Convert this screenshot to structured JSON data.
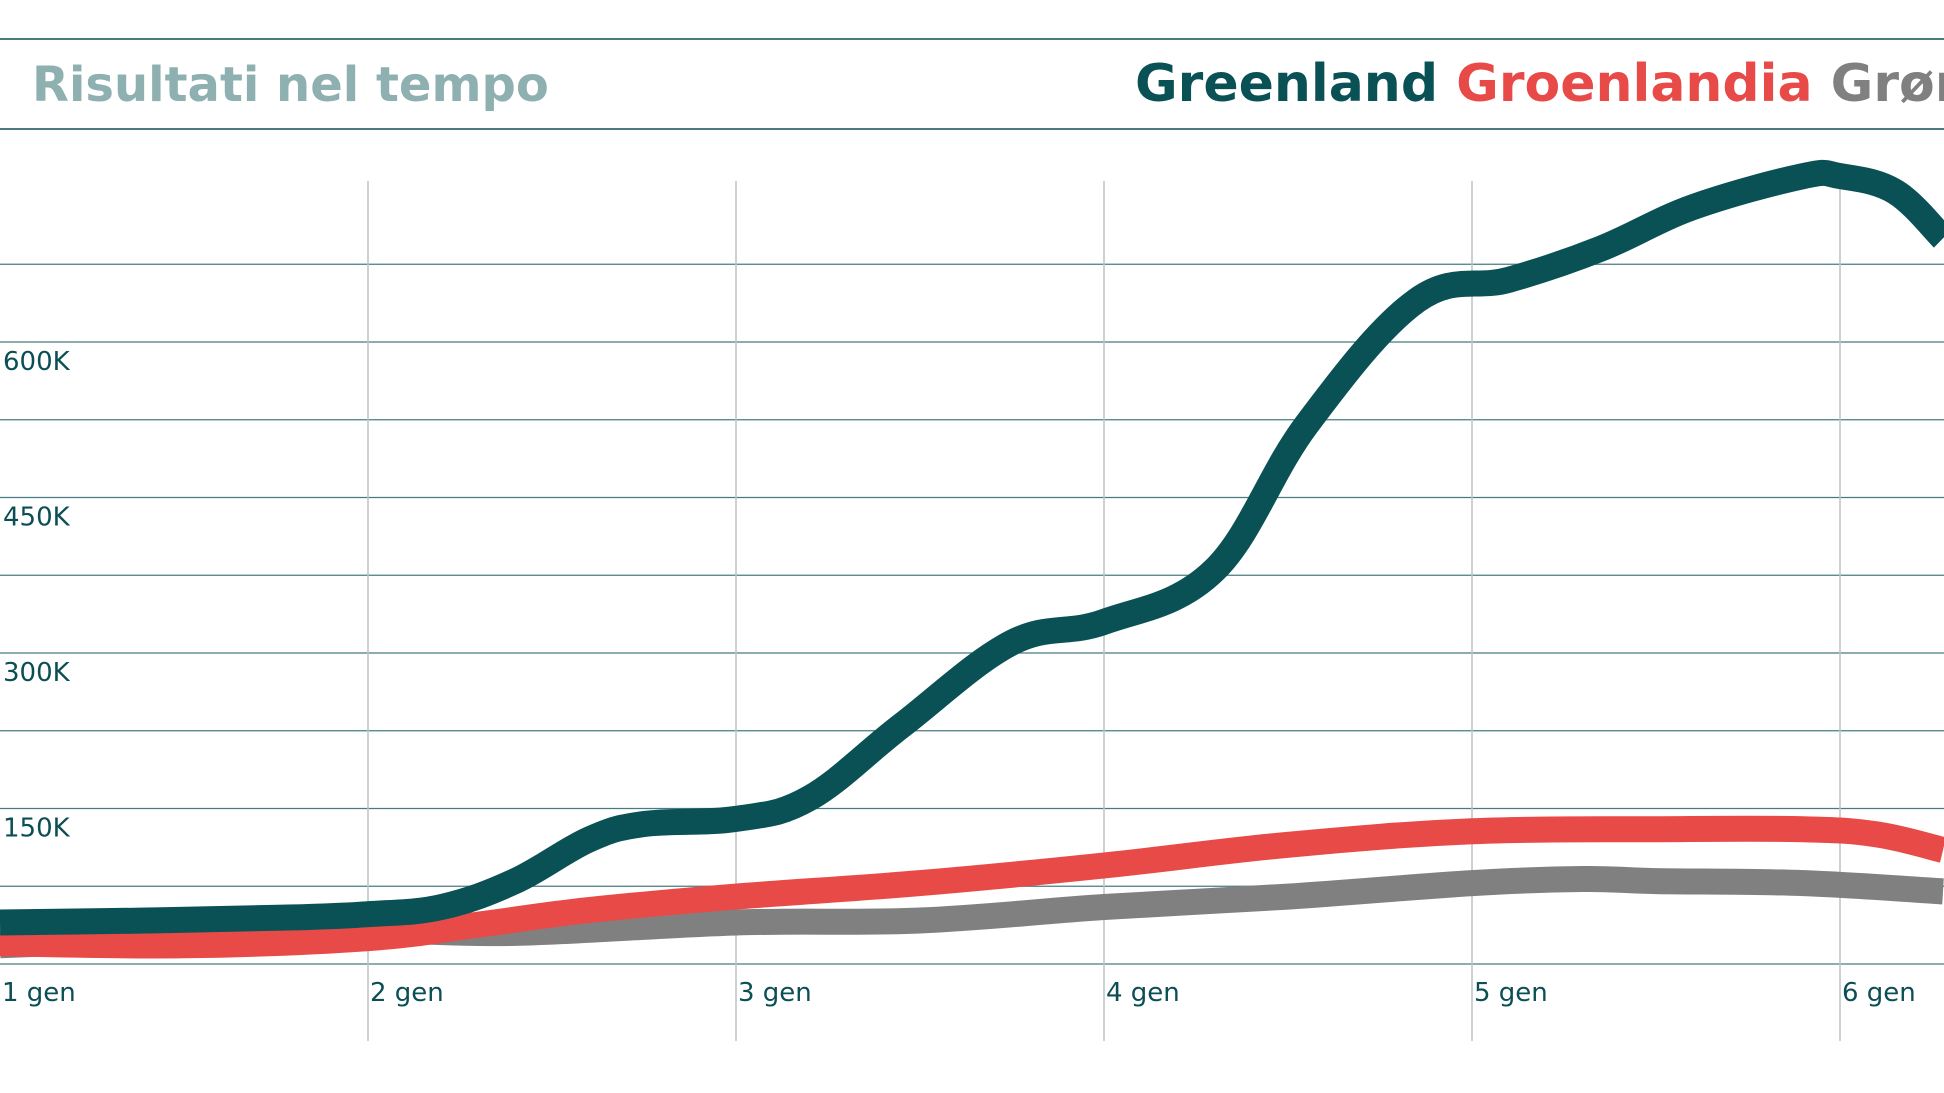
{
  "chart_data": {
    "type": "line",
    "title": "Risultati nel tempo",
    "categories": [
      "1 gen",
      "2 gen",
      "3 gen",
      "4 gen",
      "5 gen",
      "6 gen"
    ],
    "x_range": [
      0,
      5.28
    ],
    "ylim": [
      -12000,
      750000
    ],
    "yticks": [
      150000,
      300000,
      450000,
      600000
    ],
    "ytick_labels": [
      "150K",
      "300K",
      "450K",
      "600K"
    ],
    "grid": true,
    "legend_position": "top-right",
    "colors": {
      "title": "#8fb0b0",
      "axis_text": "#0b4f55",
      "gridline": "#0b4f55",
      "vgridline": "#b9c4c5",
      "background": "#ffffff"
    },
    "series": [
      {
        "name": "Greenland",
        "color": "#0a5155",
        "points": [
          [
            0.0,
            40000
          ],
          [
            0.4,
            42000
          ],
          [
            0.8,
            45000
          ],
          [
            1.0,
            48000
          ],
          [
            1.2,
            55000
          ],
          [
            1.4,
            80000
          ],
          [
            1.6,
            120000
          ],
          [
            1.75,
            135000
          ],
          [
            2.0,
            140000
          ],
          [
            2.2,
            160000
          ],
          [
            2.45,
            230000
          ],
          [
            2.75,
            310000
          ],
          [
            3.0,
            330000
          ],
          [
            3.3,
            380000
          ],
          [
            3.55,
            520000
          ],
          [
            3.85,
            640000
          ],
          [
            4.1,
            660000
          ],
          [
            4.35,
            690000
          ],
          [
            4.6,
            730000
          ],
          [
            4.9,
            760000
          ],
          [
            5.0,
            760000
          ],
          [
            5.15,
            745000
          ],
          [
            5.28,
            700000
          ]
        ]
      },
      {
        "name": "Groenlandia",
        "color": "#e84a47",
        "points": [
          [
            0.0,
            20000
          ],
          [
            0.5,
            18000
          ],
          [
            1.0,
            25000
          ],
          [
            1.3,
            38000
          ],
          [
            1.6,
            52000
          ],
          [
            2.0,
            65000
          ],
          [
            2.5,
            78000
          ],
          [
            3.0,
            95000
          ],
          [
            3.5,
            115000
          ],
          [
            4.0,
            128000
          ],
          [
            4.5,
            130000
          ],
          [
            4.9,
            130000
          ],
          [
            5.1,
            125000
          ],
          [
            5.28,
            110000
          ]
        ]
      },
      {
        "name": "Grønland",
        "color": "#808080",
        "points": [
          [
            0.0,
            18000
          ],
          [
            0.5,
            25000
          ],
          [
            1.0,
            32000
          ],
          [
            1.4,
            30000
          ],
          [
            2.0,
            40000
          ],
          [
            2.5,
            42000
          ],
          [
            3.0,
            55000
          ],
          [
            3.5,
            65000
          ],
          [
            4.0,
            78000
          ],
          [
            4.3,
            82000
          ],
          [
            4.5,
            80000
          ],
          [
            4.9,
            78000
          ],
          [
            5.28,
            70000
          ]
        ]
      }
    ]
  }
}
